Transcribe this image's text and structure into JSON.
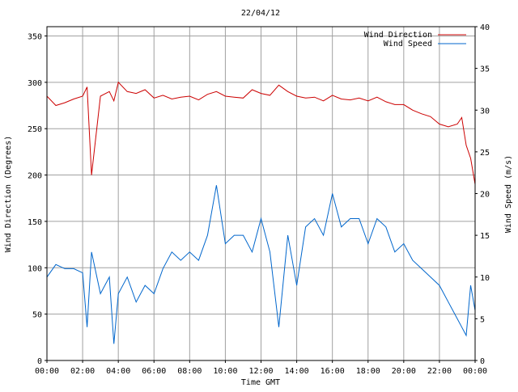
{
  "chart_data": {
    "type": "line",
    "title": "22/04/12",
    "xlabel": "Time GMT",
    "ylabel": "Wind Direction (Degrees)",
    "y2label": "Wind Speed (m/s)",
    "x_ticks": [
      "00:00",
      "02:00",
      "04:00",
      "06:00",
      "08:00",
      "10:00",
      "12:00",
      "14:00",
      "16:00",
      "18:00",
      "20:00",
      "22:00",
      "00:00"
    ],
    "x_range_hours": [
      0,
      24
    ],
    "ylim": [
      0,
      360
    ],
    "y_ticks": [
      0,
      50,
      100,
      150,
      200,
      250,
      300,
      350
    ],
    "y2lim": [
      0,
      40
    ],
    "y2_ticks": [
      0,
      5,
      10,
      15,
      20,
      25,
      30,
      35,
      40
    ],
    "grid": true,
    "legend_position": "top-right",
    "x_hours": [
      0,
      0.5,
      1,
      1.5,
      2,
      2.25,
      2.5,
      3,
      3.5,
      3.75,
      4,
      4.5,
      5,
      5.5,
      6,
      6.5,
      7,
      7.5,
      8,
      8.5,
      9,
      9.5,
      10,
      10.5,
      11,
      11.5,
      12,
      12.5,
      13,
      13.5,
      14,
      14.5,
      15,
      15.5,
      16,
      16.5,
      17,
      17.5,
      18,
      18.5,
      19,
      19.5,
      20,
      20.5,
      21,
      21.5,
      22,
      22.5,
      23,
      23.25,
      23.5,
      23.75,
      24
    ],
    "series": [
      {
        "name": "Wind Direction",
        "axis": "left",
        "color": "#cc0000",
        "values": [
          285,
          275,
          278,
          282,
          285,
          295,
          200,
          285,
          290,
          280,
          300,
          290,
          288,
          292,
          283,
          286,
          282,
          284,
          285,
          281,
          287,
          290,
          285,
          284,
          283,
          292,
          288,
          286,
          297,
          290,
          285,
          283,
          284,
          280,
          286,
          282,
          281,
          283,
          280,
          284,
          279,
          276,
          276,
          270,
          266,
          263,
          255,
          252,
          255,
          262,
          232,
          218,
          190
        ]
      },
      {
        "name": "Wind Speed",
        "axis": "right",
        "color": "#0066cc",
        "values": [
          10,
          11.5,
          11,
          11,
          10.5,
          4,
          13,
          8,
          10,
          2,
          8,
          10,
          7,
          9,
          8,
          11,
          13,
          12,
          13,
          12,
          15,
          21,
          14,
          15,
          15,
          13,
          17,
          13,
          4,
          15,
          9,
          16,
          17,
          15,
          20,
          16,
          17,
          17,
          14,
          17,
          16,
          13,
          14,
          12,
          11,
          10,
          9,
          7,
          5,
          4,
          3,
          9,
          6
        ]
      }
    ]
  }
}
